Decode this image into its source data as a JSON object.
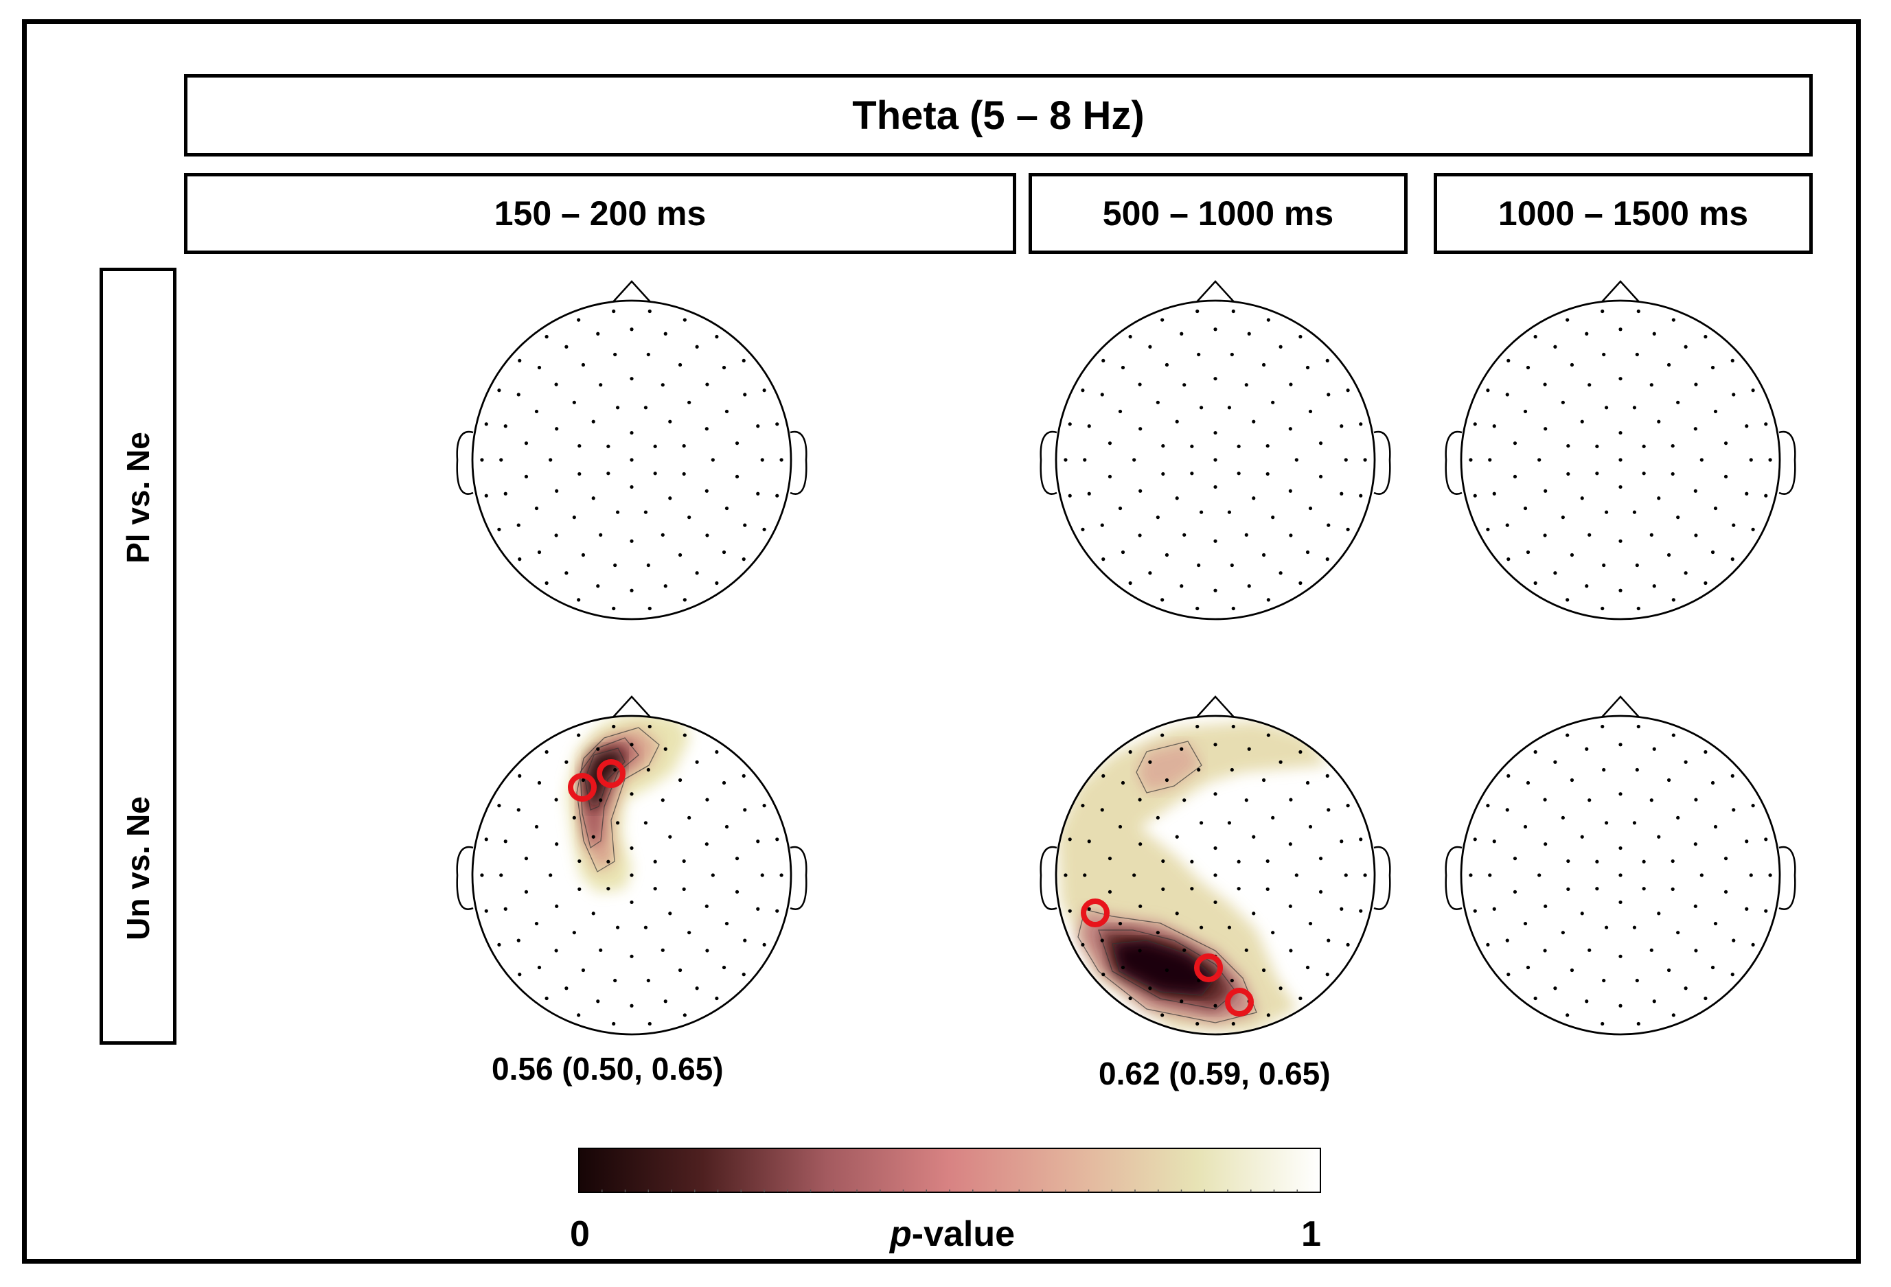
{
  "band_title": "Theta (5 – 8 Hz)",
  "windows": [
    {
      "id": "w1",
      "label": "150 – 200 ms"
    },
    {
      "id": "w2",
      "label": "500 – 1000  ms"
    },
    {
      "id": "w3",
      "label": "1000 – 1500  ms"
    }
  ],
  "rows": [
    {
      "id": "pl-ne",
      "label": "Pl vs. Ne"
    },
    {
      "id": "un-ne",
      "label": "Un vs. Ne"
    }
  ],
  "cells": [
    {
      "row": "pl-ne",
      "window": "w1",
      "significant": false,
      "stat": ""
    },
    {
      "row": "pl-ne",
      "window": "w2",
      "significant": false,
      "stat": ""
    },
    {
      "row": "pl-ne",
      "window": "w3",
      "significant": false,
      "stat": ""
    },
    {
      "row": "un-ne",
      "window": "w1",
      "significant": true,
      "stat": "0.56 (0.50, 0.65)"
    },
    {
      "row": "un-ne",
      "window": "w2",
      "significant": true,
      "stat": "0.62 (0.59, 0.65)"
    },
    {
      "row": "un-ne",
      "window": "w3",
      "significant": false,
      "stat": ""
    }
  ],
  "colorbar": {
    "min_label": "0",
    "max_label": "1",
    "label_italic": "p",
    "label_rest": "-value",
    "stops": [
      "#160506",
      "#4e2020",
      "#a35a5f",
      "#d88383",
      "#e3b39c",
      "#e7e3b5",
      "#ffffff"
    ]
  },
  "colors": {
    "outline": "#000000",
    "electrode_highlight": "#e8141b"
  }
}
